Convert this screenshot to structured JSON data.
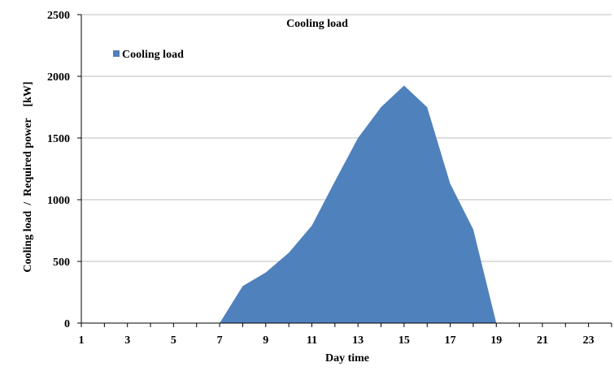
{
  "chart_data": {
    "type": "area",
    "title": "Cooling load",
    "xlabel": "Day time",
    "ylabel": "Cooling load  /  Required power    [kW]",
    "x_ticks": [
      "1",
      "3",
      "5",
      "7",
      "9",
      "11",
      "13",
      "15",
      "17",
      "19",
      "21",
      "23"
    ],
    "y_ticks": [
      "0",
      "500",
      "1000",
      "1500",
      "2000",
      "2500"
    ],
    "xlim": [
      1,
      24
    ],
    "ylim": [
      0,
      2500
    ],
    "grid": "horizontal",
    "legend": "top-left",
    "series": [
      {
        "name": "Cooling load",
        "color": "#4F81BD",
        "x": [
          7,
          8,
          9,
          10,
          11,
          12,
          13,
          14,
          15,
          16,
          17,
          18,
          19
        ],
        "values": [
          0,
          300,
          410,
          570,
          790,
          1150,
          1500,
          1750,
          1925,
          1750,
          1130,
          760,
          0
        ]
      }
    ]
  }
}
